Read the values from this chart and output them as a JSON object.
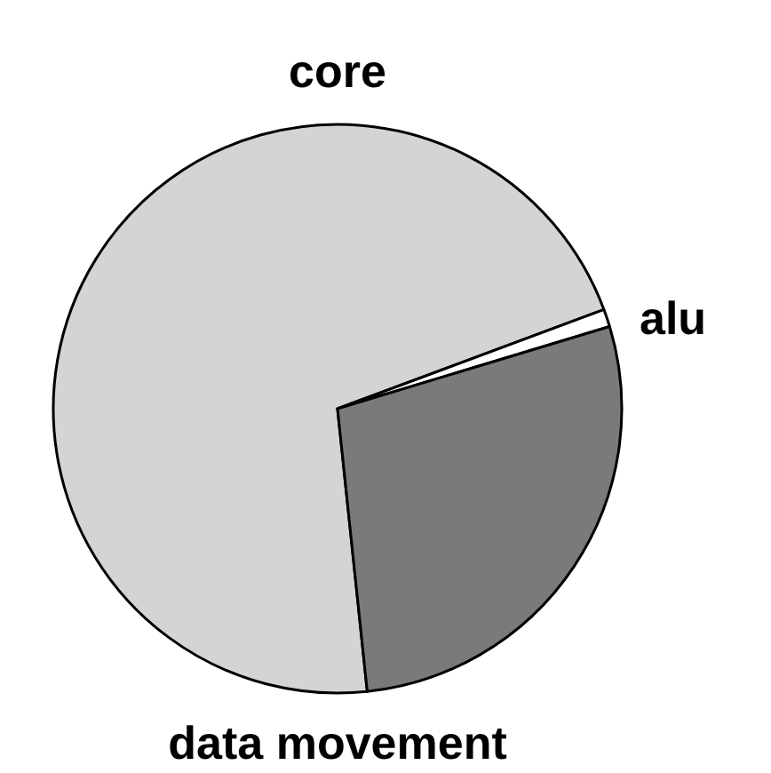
{
  "chart_data": {
    "type": "pie",
    "categories": [
      "core",
      "alu",
      "data movement"
    ],
    "values": [
      71,
      1,
      28
    ],
    "colors": [
      "#d4d4d4",
      "#ffffff",
      "#7a7a7a"
    ]
  }
}
